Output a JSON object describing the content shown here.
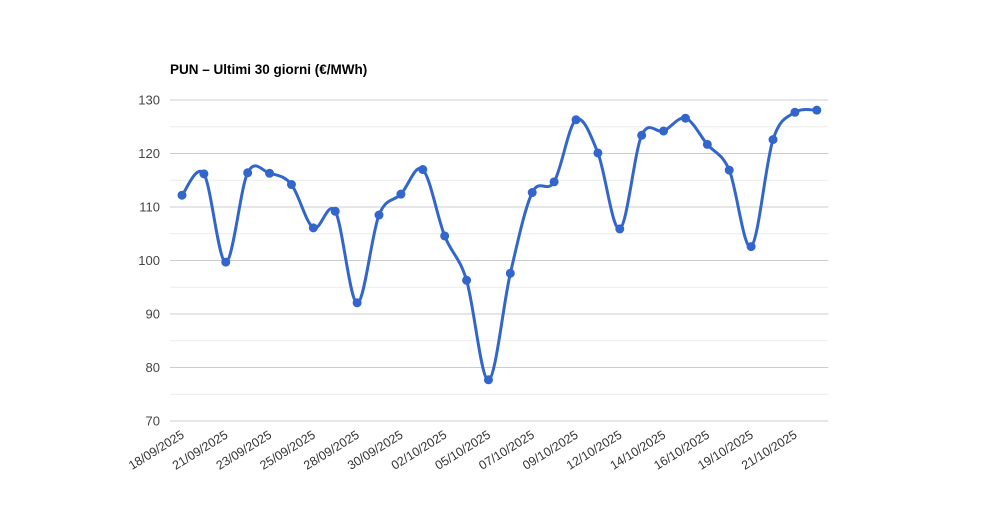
{
  "title": "PUN – Ultimi 30 giorni (€/MWh)",
  "chart_data": {
    "type": "line",
    "title": "PUN – Ultimi 30 giorni (€/MWh)",
    "series": [
      {
        "name": "PUN",
        "values": [
          112.2,
          116.2,
          99.7,
          116.4,
          116.3,
          114.2,
          106.1,
          109.2,
          92.1,
          108.5,
          112.4,
          117.0,
          104.6,
          96.3,
          77.7,
          97.6,
          112.7,
          114.7,
          126.3,
          120.1,
          105.9,
          123.4,
          124.2,
          126.6,
          121.7,
          116.9,
          102.6,
          122.6,
          127.7,
          128.1
        ]
      }
    ],
    "x_tick_labels": [
      "18/09/2025",
      "21/09/2025",
      "23/09/2025",
      "25/09/2025",
      "28/09/2025",
      "30/09/2025",
      "02/10/2025",
      "05/10/2025",
      "07/10/2025",
      "09/10/2025",
      "12/10/2025",
      "14/10/2025",
      "16/10/2025",
      "19/10/2025",
      "21/10/2025"
    ],
    "x_tick_every": 2,
    "y_ticks": [
      70,
      80,
      90,
      100,
      110,
      120,
      130
    ],
    "ylim": [
      70,
      130
    ],
    "grid": true,
    "minor_gridlines": true,
    "legend_position": "none",
    "curve": "smooth",
    "colors": {
      "series": "#3366cc",
      "major_gridline": "#cccccc",
      "minor_gridline": "#ebebeb",
      "y_axis_label": "#444444",
      "x_axis_label": "#333333",
      "title": "#000000",
      "background": "#ffffff"
    }
  }
}
